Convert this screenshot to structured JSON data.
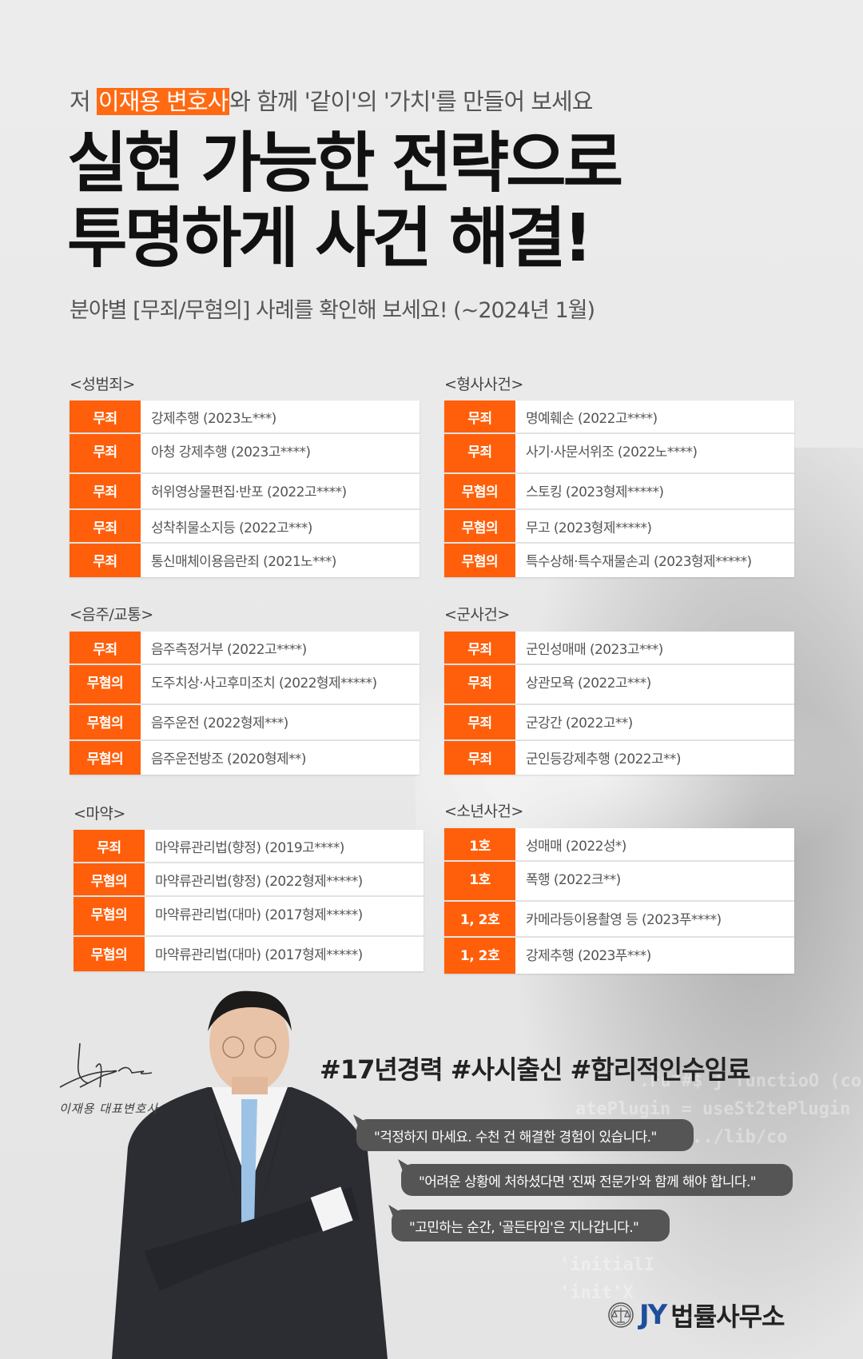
{
  "colors": {
    "accent": "#ff5f0a",
    "bubble": "#555556",
    "logo_blue": "#1f4e9c"
  },
  "intro": {
    "prefix": "저 ",
    "highlight": "이재용 변호사",
    "suffix": "와 함께 '같이'의 '가치'를 만들어 보세요"
  },
  "headline": {
    "line1": "실현 가능한 전략으로",
    "line2": "투명하게 사건 해결!"
  },
  "subheadline": "분야별 [무죄/무혐의] 사례를 확인해 보세요! (~2024년 1월)",
  "categories": [
    {
      "title": "<성범죄>",
      "rows": [
        {
          "result": "무죄",
          "case": "강제추행 (2023노***)"
        },
        {
          "result": "무죄",
          "case": "아청 강제추행 (2023고****)"
        },
        {
          "result": "무죄",
          "case": "허위영상물편집·반포 (2022고****)"
        },
        {
          "result": "무죄",
          "case": "성착취물소지등 (2022고***)"
        },
        {
          "result": "무죄",
          "case": "통신매체이용음란죄 (2021노***)"
        }
      ]
    },
    {
      "title": "<형사사건>",
      "rows": [
        {
          "result": "무죄",
          "case": "명예훼손 (2022고****)"
        },
        {
          "result": "무죄",
          "case": "사기·사문서위조 (2022노****)"
        },
        {
          "result": "무혐의",
          "case": "스토킹 (2023형제*****)"
        },
        {
          "result": "무혐의",
          "case": "무고 (2023형제*****)"
        },
        {
          "result": "무혐의",
          "case": "특수상해·특수재물손괴 (2023형제*****)"
        }
      ]
    },
    {
      "title": "<음주/교통>",
      "rows": [
        {
          "result": "무죄",
          "case": "음주측정거부 (2022고****)"
        },
        {
          "result": "무혐의",
          "case": "도주치상·사고후미조치 (2022형제*****)"
        },
        {
          "result": "무혐의",
          "case": "음주운전 (2022형제***)"
        },
        {
          "result": "무혐의",
          "case": "음주운전방조  (2020형제**)"
        }
      ]
    },
    {
      "title": "<군사건>",
      "rows": [
        {
          "result": "무죄",
          "case": "군인성매매 (2023고***)"
        },
        {
          "result": "무죄",
          "case": "상관모욕 (2022고***)"
        },
        {
          "result": "무죄",
          "case": "군강간 (2022고**)"
        },
        {
          "result": "무죄",
          "case": "군인등강제추행 (2022고**)"
        }
      ]
    },
    {
      "title": "<마약>",
      "rows": [
        {
          "result": "무죄",
          "case": "마약류관리법(향정) (2019고****)"
        },
        {
          "result": "무혐의",
          "case": "마약류관리법(향정) (2022형제*****)"
        },
        {
          "result": "무혐의",
          "case": "마약류관리법(대마) (2017형제*****)"
        },
        {
          "result": "무혐의",
          "case": "마약류관리법(대마) (2017형제*****)"
        }
      ]
    },
    {
      "title": "<소년사건>",
      "rows": [
        {
          "result": "1호",
          "case": "성매매  (2022성*)"
        },
        {
          "result": "1호",
          "case": "폭행 (2022크**)"
        },
        {
          "result": "1, 2호",
          "case": "카메라등이용촬영 등 (2023푸****)"
        },
        {
          "result": "1, 2호",
          "case": "강제추행 (2023푸***)"
        }
      ]
    }
  ],
  "lawyer": {
    "signature_caption": "이재용 대표변호사"
  },
  "hashtags": "#17년경력 #사시출신 #합리적인수임료",
  "quotes": [
    "\"걱정하지 마세요. 수천 건 해결한 경험이 있습니다.\"",
    "\"어려운 상황에 처하셨다면 '진짜 전문가'와 함께 해야 합니다.\"",
    "\"고민하는 순간, '골든타임'은 지나갑니다.\""
  ],
  "logo": {
    "mark": "JY",
    "name": "법률사무소",
    "icon": "scales-of-justice-icon"
  }
}
